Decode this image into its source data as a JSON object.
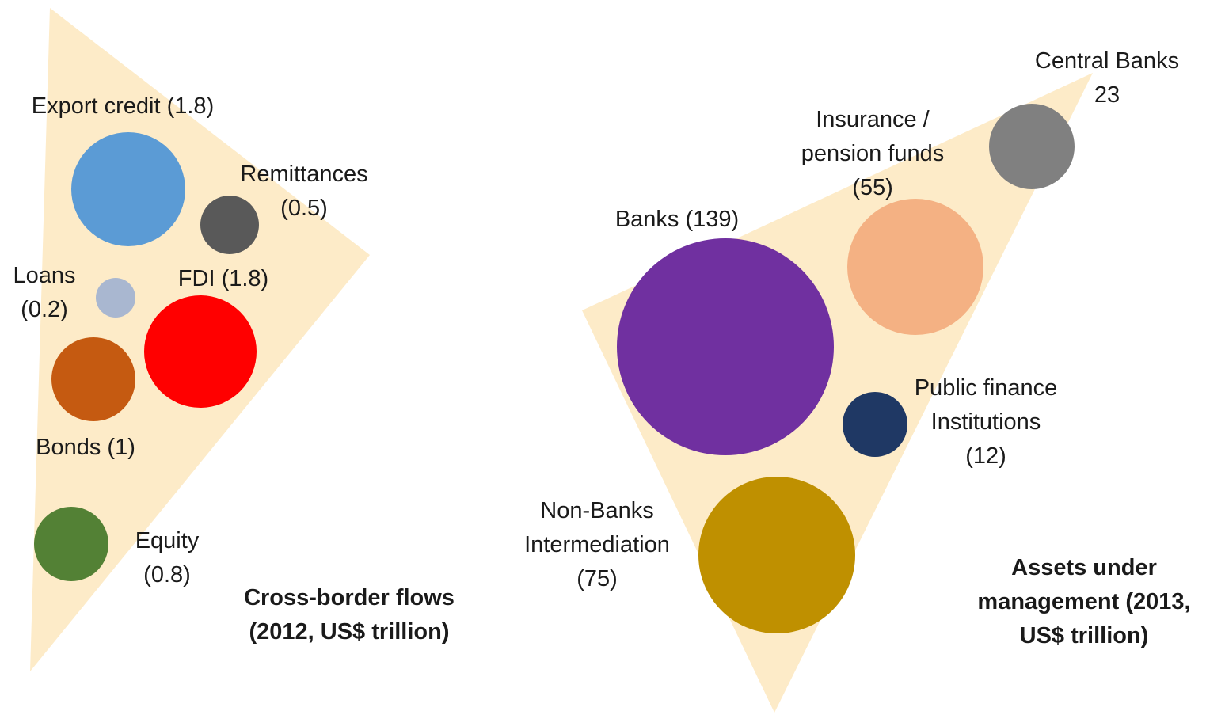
{
  "left_panel": {
    "title_lines": [
      "Cross-border flows",
      "(2012, US$ trillion)"
    ],
    "background_color": "#fdebc8",
    "items": [
      {
        "name": "Export credit",
        "value": 1.8,
        "color": "#5b9bd5",
        "label_lines": [
          "Export credit (1.8)"
        ]
      },
      {
        "name": "Remittances",
        "value": 0.5,
        "color": "#595959",
        "label_lines": [
          "Remittances",
          "(0.5)"
        ]
      },
      {
        "name": "Loans",
        "value": 0.2,
        "color": "#a9b7d0",
        "label_lines": [
          "Loans",
          "(0.2)"
        ]
      },
      {
        "name": "FDI",
        "value": 1.8,
        "color": "#ff0000",
        "label_lines": [
          "FDI (1.8)"
        ]
      },
      {
        "name": "Bonds",
        "value": 1,
        "color": "#c55a11",
        "label_lines": [
          "Bonds (1)"
        ]
      },
      {
        "name": "Equity",
        "value": 0.8,
        "color": "#538135",
        "label_lines": [
          "Equity",
          "(0.8)"
        ]
      }
    ]
  },
  "right_panel": {
    "title_lines": [
      "Assets under",
      "management (2013,",
      "US$ trillion)"
    ],
    "background_color": "#fdebc8",
    "items": [
      {
        "name": "Central Banks",
        "value": 23,
        "color": "#808080",
        "label_lines": [
          "Central Banks",
          "23"
        ]
      },
      {
        "name": "Insurance / pension funds",
        "value": 55,
        "color": "#f4b183",
        "label_lines": [
          "Insurance /",
          "pension funds",
          "(55)"
        ]
      },
      {
        "name": "Banks",
        "value": 139,
        "color": "#7030a0",
        "label_lines": [
          "Banks (139)"
        ]
      },
      {
        "name": "Public finance Institutions",
        "value": 12,
        "color": "#1f3864",
        "label_lines": [
          "Public finance",
          "Institutions",
          "(12)"
        ]
      },
      {
        "name": "Non-Banks Intermediation",
        "value": 75,
        "color": "#bf9000",
        "label_lines": [
          "Non-Banks",
          "Intermediation",
          "(75)"
        ]
      }
    ]
  }
}
